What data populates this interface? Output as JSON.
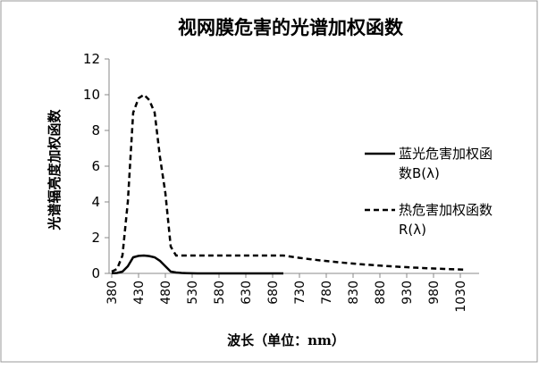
{
  "chart_data": {
    "type": "line",
    "title": "视网膜危害的光谱加权函数",
    "x_label": "波长（单位：nm）",
    "y_label": "光谱辐亮度加权函数",
    "x": [
      380,
      390,
      400,
      410,
      420,
      430,
      440,
      450,
      460,
      470,
      480,
      490,
      500,
      510,
      520,
      530,
      540,
      550,
      560,
      570,
      580,
      590,
      600,
      610,
      620,
      630,
      640,
      650,
      660,
      670,
      680,
      690,
      700,
      710,
      720,
      730,
      740,
      750,
      760,
      770,
      780,
      790,
      800,
      810,
      820,
      830,
      840,
      850,
      860,
      870,
      880,
      890,
      900,
      910,
      920,
      930,
      940,
      950,
      960,
      970,
      980,
      990,
      1000,
      1010,
      1020,
      1030,
      1040
    ],
    "series": [
      {
        "name": "蓝光危害加权函数B(λ)",
        "color": "#000000",
        "dash": "solid",
        "values": [
          0.01,
          0.025,
          0.1,
          0.4,
          0.9,
          0.98,
          1.0,
          0.97,
          0.9,
          0.7,
          0.4,
          0.1,
          0.05,
          0.025,
          0.013,
          0.007,
          0.003,
          0.002,
          0.001,
          0.001,
          0.001,
          0.001,
          0.001,
          0.001,
          0.001,
          0.001,
          0.001,
          0.001,
          0.001,
          0.001,
          0.001,
          0.001,
          0.001,
          null,
          null,
          null,
          null,
          null,
          null,
          null,
          null,
          null,
          null,
          null,
          null,
          null,
          null,
          null,
          null,
          null,
          null,
          null,
          null,
          null,
          null,
          null,
          null,
          null,
          null,
          null,
          null,
          null,
          null,
          null,
          null,
          null,
          null
        ]
      },
      {
        "name": "热危害加权函数R(λ)",
        "color": "#000000",
        "dash": "dashed",
        "values": [
          0.1,
          0.25,
          1.0,
          4.0,
          9.0,
          9.8,
          10,
          9.7,
          9.0,
          6.5,
          4.5,
          1.5,
          1.0,
          1.0,
          1.0,
          1.0,
          1.0,
          1.0,
          1.0,
          1.0,
          1.0,
          1.0,
          1.0,
          1.0,
          1.0,
          1.0,
          1.0,
          1.0,
          1.0,
          1.0,
          1.0,
          1.0,
          1.0,
          0.955,
          0.912,
          0.871,
          0.832,
          0.794,
          0.759,
          0.724,
          0.692,
          0.661,
          0.631,
          0.603,
          0.575,
          0.55,
          0.525,
          0.501,
          0.479,
          0.457,
          0.437,
          0.417,
          0.398,
          0.38,
          0.363,
          0.347,
          0.331,
          0.316,
          0.302,
          0.288,
          0.275,
          0.263,
          0.251,
          0.24,
          0.229,
          0.219,
          0.209
        ]
      }
    ],
    "xlim": [
      375,
      1045
    ],
    "xticks": [
      380,
      430,
      480,
      530,
      580,
      630,
      680,
      730,
      780,
      830,
      880,
      930,
      980,
      1030
    ],
    "ylim": [
      0,
      12
    ],
    "yticks": [
      0,
      2,
      4,
      6,
      8,
      10,
      12
    ],
    "legend": "right"
  }
}
